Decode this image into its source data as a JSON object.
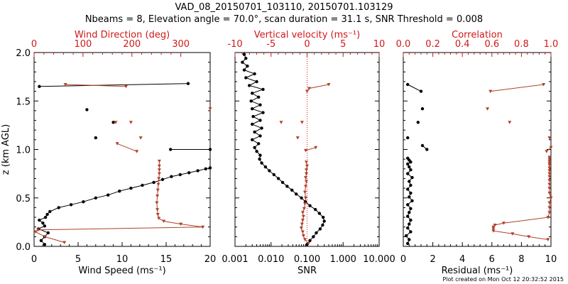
{
  "figure": {
    "title": "VAD_08_20150701_103110, 20150701.103129",
    "subtitle": "Nbeams = 8, Elevation angle = 70.0°, scan duration = 31.1 s, SNR Threshold = 0.008",
    "footer": "Plot created on Mon Oct 12 20:32:52 2015"
  },
  "colors": {
    "black_series": "#000000",
    "red_series": "#b0402a",
    "red_axis": "#d01818"
  },
  "chart_data": [
    {
      "type": "line",
      "panel": "wind",
      "ylabel": "z (km AGL)",
      "ylim": [
        0.0,
        2.0
      ],
      "yticks": [
        "0.0",
        "0.5",
        "1.0",
        "1.5",
        "2.0"
      ],
      "bottom_axis": {
        "label": "Wind Speed (ms⁻¹)",
        "range": [
          0,
          20
        ],
        "ticks": [
          "0",
          "5",
          "10",
          "15",
          "20"
        ],
        "color": "#000000"
      },
      "top_axis": {
        "label": "Wind Direction (deg)",
        "range": [
          0,
          360
        ],
        "ticks": [
          "0",
          "100",
          "200",
          "300"
        ],
        "color": "#d01818"
      },
      "series": [
        {
          "axis": "bottom",
          "color": "#000000",
          "x": [
            1.2,
            0.8,
            1.2,
            1.6,
            0.5,
            1.2,
            1.0,
            0.6,
            1.3,
            1.5,
            1.8,
            2.8,
            4.2,
            5.6,
            7.0,
            8.4,
            9.7,
            11.0,
            12.3,
            13.6,
            14.6,
            15.6,
            16.6,
            17.6,
            18.6,
            19.5,
            20.0
          ],
          "y": [
            0.02,
            0.06,
            0.1,
            0.14,
            0.18,
            0.21,
            0.24,
            0.27,
            0.3,
            0.33,
            0.36,
            0.4,
            0.43,
            0.46,
            0.5,
            0.53,
            0.57,
            0.6,
            0.63,
            0.66,
            0.69,
            0.72,
            0.74,
            0.76,
            0.78,
            0.8,
            0.81
          ]
        },
        {
          "axis": "bottom",
          "color": "#000000",
          "x": [
            15.5,
            20.0
          ],
          "y": [
            1.0,
            1.0
          ]
        },
        {
          "axis": "bottom",
          "color": "#000000",
          "x": [
            7.0
          ],
          "y": [
            1.12
          ]
        },
        {
          "axis": "bottom",
          "color": "#000000",
          "x": [
            9.0
          ],
          "y": [
            1.28
          ]
        },
        {
          "axis": "bottom",
          "color": "#000000",
          "x": [
            6.0
          ],
          "y": [
            1.41
          ]
        },
        {
          "axis": "bottom",
          "color": "#000000",
          "x": [
            0.6,
            17.5
          ],
          "y": [
            1.65,
            1.68
          ]
        },
        {
          "axis": "top",
          "color": "#b0402a",
          "x": [
            62,
            22,
            3,
            8,
            345,
            300,
            265,
            255,
            253,
            252,
            251,
            252,
            253,
            254,
            255,
            256,
            256,
            256,
            256
          ],
          "y": [
            0.04,
            0.1,
            0.15,
            0.17,
            0.2,
            0.23,
            0.26,
            0.29,
            0.33,
            0.38,
            0.45,
            0.52,
            0.58,
            0.64,
            0.7,
            0.75,
            0.79,
            0.83,
            0.88
          ]
        },
        {
          "axis": "top",
          "color": "#b0402a",
          "x": [
            210,
            170
          ],
          "y": [
            0.98,
            1.06
          ]
        },
        {
          "axis": "top",
          "color": "#b0402a",
          "x": [
            218
          ],
          "y": [
            1.12
          ]
        },
        {
          "axis": "top",
          "color": "#b0402a",
          "x": [
            167
          ],
          "y": [
            1.28
          ]
        },
        {
          "axis": "top",
          "color": "#b0402a",
          "x": [
            198
          ],
          "y": [
            1.28
          ]
        },
        {
          "axis": "top",
          "color": "#b0402a",
          "x": [
            360
          ],
          "y": [
            1.42
          ]
        },
        {
          "axis": "top",
          "color": "#b0402a",
          "x": [
            64,
            188
          ],
          "y": [
            1.67,
            1.65
          ]
        }
      ]
    },
    {
      "type": "line",
      "panel": "snr",
      "ylim": [
        0.0,
        2.0
      ],
      "bottom_axis": {
        "label": "SNR",
        "scale": "log",
        "range": [
          0.001,
          10
        ],
        "ticks": [
          "0.001",
          "0.010",
          "0.100",
          "1.000",
          "10.000"
        ],
        "color": "#000000"
      },
      "top_axis": {
        "label": "Vertical velocity (ms⁻¹)",
        "range": [
          -10,
          10
        ],
        "ticks": [
          "-10",
          "-5",
          "0",
          "5",
          "10"
        ],
        "color": "#d01818",
        "zero_line": "dotted"
      },
      "series": [
        {
          "axis": "bottom",
          "color": "#000000",
          "x": [
            0.1,
            0.12,
            0.15,
            0.18,
            0.23,
            0.27,
            0.3,
            0.28,
            0.22,
            0.17,
            0.12,
            0.09,
            0.07,
            0.05,
            0.038,
            0.028,
            0.021,
            0.016,
            0.012,
            0.009,
            0.007,
            0.0055,
            0.0048,
            0.005,
            0.004,
            0.0035,
            0.0045,
            0.003,
            0.005,
            0.0035,
            0.0055,
            0.003,
            0.005,
            0.0032,
            0.006,
            0.003,
            0.005,
            0.0028,
            0.0045,
            0.003,
            0.006,
            0.0025,
            0.004,
            0.002,
            0.0035,
            0.0018,
            0.0022,
            0.0016,
            0.002,
            0.0018
          ],
          "y": [
            0.02,
            0.06,
            0.1,
            0.14,
            0.18,
            0.22,
            0.26,
            0.3,
            0.34,
            0.38,
            0.42,
            0.46,
            0.5,
            0.54,
            0.58,
            0.62,
            0.66,
            0.7,
            0.74,
            0.78,
            0.82,
            0.86,
            0.9,
            0.94,
            0.98,
            1.02,
            1.06,
            1.1,
            1.14,
            1.18,
            1.22,
            1.26,
            1.3,
            1.34,
            1.38,
            1.42,
            1.46,
            1.5,
            1.54,
            1.58,
            1.62,
            1.66,
            1.7,
            1.74,
            1.78,
            1.82,
            1.86,
            1.9,
            1.94,
            1.98
          ]
        },
        {
          "axis": "top",
          "color": "#b0402a",
          "x": [
            0.2,
            -0.3,
            -0.5,
            -0.6,
            -0.8,
            -0.7,
            -0.6,
            -0.5,
            -0.6,
            -0.4,
            -0.3,
            -0.2,
            -0.3,
            -0.2,
            -0.1,
            -0.2,
            -0.1,
            -0.1,
            0.0,
            -0.1
          ],
          "y": [
            0.03,
            0.07,
            0.11,
            0.15,
            0.19,
            0.23,
            0.27,
            0.31,
            0.35,
            0.39,
            0.44,
            0.5,
            0.56,
            0.62,
            0.67,
            0.71,
            0.75,
            0.79,
            0.83,
            0.87
          ]
        },
        {
          "axis": "top",
          "color": "#b0402a",
          "x": [
            -0.2,
            1.2
          ],
          "y": [
            0.99,
            1.02
          ]
        },
        {
          "axis": "top",
          "color": "#b0402a",
          "x": [
            -1.3
          ],
          "y": [
            1.12
          ]
        },
        {
          "axis": "top",
          "color": "#b0402a",
          "x": [
            -3.6
          ],
          "y": [
            1.28
          ]
        },
        {
          "axis": "top",
          "color": "#b0402a",
          "x": [
            -0.7
          ],
          "y": [
            1.28
          ]
        },
        {
          "axis": "top",
          "color": "#b0402a",
          "x": [
            0.0,
            0.3,
            3.0
          ],
          "y": [
            1.6,
            1.63,
            1.67
          ]
        }
      ]
    },
    {
      "type": "line",
      "panel": "residual",
      "ylim": [
        0.0,
        2.0
      ],
      "bottom_axis": {
        "label": "Residual (ms⁻¹)",
        "range": [
          0,
          10
        ],
        "ticks": [
          "0",
          "2",
          "4",
          "6",
          "8",
          "10"
        ],
        "color": "#000000"
      },
      "top_axis": {
        "label": "Correlation",
        "range": [
          0.0,
          1.0
        ],
        "ticks": [
          "0.0",
          "0.2",
          "0.4",
          "0.6",
          "0.8",
          "1.0"
        ],
        "color": "#d01818"
      },
      "series": [
        {
          "axis": "bottom",
          "color": "#000000",
          "x": [
            0.3,
            0.4,
            0.2,
            0.5,
            0.3,
            0.4,
            0.5,
            0.3,
            0.4,
            0.5,
            0.3,
            0.6,
            0.4,
            0.5,
            0.3,
            0.5,
            0.4,
            0.6,
            0.3,
            0.5,
            0.4,
            0.3,
            0.5,
            0.4,
            0.3
          ],
          "y": [
            0.03,
            0.07,
            0.11,
            0.15,
            0.19,
            0.23,
            0.27,
            0.31,
            0.35,
            0.39,
            0.43,
            0.47,
            0.51,
            0.55,
            0.59,
            0.63,
            0.67,
            0.71,
            0.75,
            0.79,
            0.82,
            0.85,
            0.87,
            0.89,
            0.91
          ]
        },
        {
          "axis": "bottom",
          "color": "#000000",
          "x": [
            1.3,
            1.6
          ],
          "y": [
            1.04,
            1.0
          ]
        },
        {
          "axis": "bottom",
          "color": "#000000",
          "x": [
            0.3
          ],
          "y": [
            1.12
          ]
        },
        {
          "axis": "bottom",
          "color": "#000000",
          "x": [
            1.0
          ],
          "y": [
            1.28
          ]
        },
        {
          "axis": "bottom",
          "color": "#000000",
          "x": [
            1.3
          ],
          "y": [
            1.42
          ]
        },
        {
          "axis": "bottom",
          "color": "#000000",
          "x": [
            0.3,
            1.2
          ],
          "y": [
            1.67,
            1.6
          ]
        },
        {
          "axis": "top",
          "color": "#b0402a",
          "x": [
            0.98,
            0.85,
            0.74,
            0.61,
            0.61,
            0.61,
            0.62,
            0.68,
            0.98,
            0.99,
            0.99,
            0.99,
            1.0,
            0.99,
            0.99,
            0.99,
            0.99,
            0.99,
            0.99,
            0.99,
            0.99,
            0.99,
            0.99,
            0.99,
            0.99,
            0.99
          ],
          "y": [
            0.07,
            0.1,
            0.13,
            0.16,
            0.18,
            0.2,
            0.22,
            0.24,
            0.3,
            0.35,
            0.4,
            0.45,
            0.5,
            0.55,
            0.6,
            0.64,
            0.68,
            0.72,
            0.75,
            0.78,
            0.81,
            0.84,
            0.86,
            0.88,
            0.9,
            0.92
          ]
        },
        {
          "axis": "top",
          "color": "#b0402a",
          "x": [
            0.97,
            1.0
          ],
          "y": [
            0.98,
            1.02
          ]
        },
        {
          "axis": "top",
          "color": "#b0402a",
          "x": [
            0.99
          ],
          "y": [
            1.12
          ]
        },
        {
          "axis": "top",
          "color": "#b0402a",
          "x": [
            0.72
          ],
          "y": [
            1.28
          ]
        },
        {
          "axis": "top",
          "color": "#b0402a",
          "x": [
            0.57
          ],
          "y": [
            1.42
          ]
        },
        {
          "axis": "top",
          "color": "#b0402a",
          "x": [
            0.59,
            0.95
          ],
          "y": [
            1.6,
            1.67
          ]
        }
      ]
    }
  ]
}
